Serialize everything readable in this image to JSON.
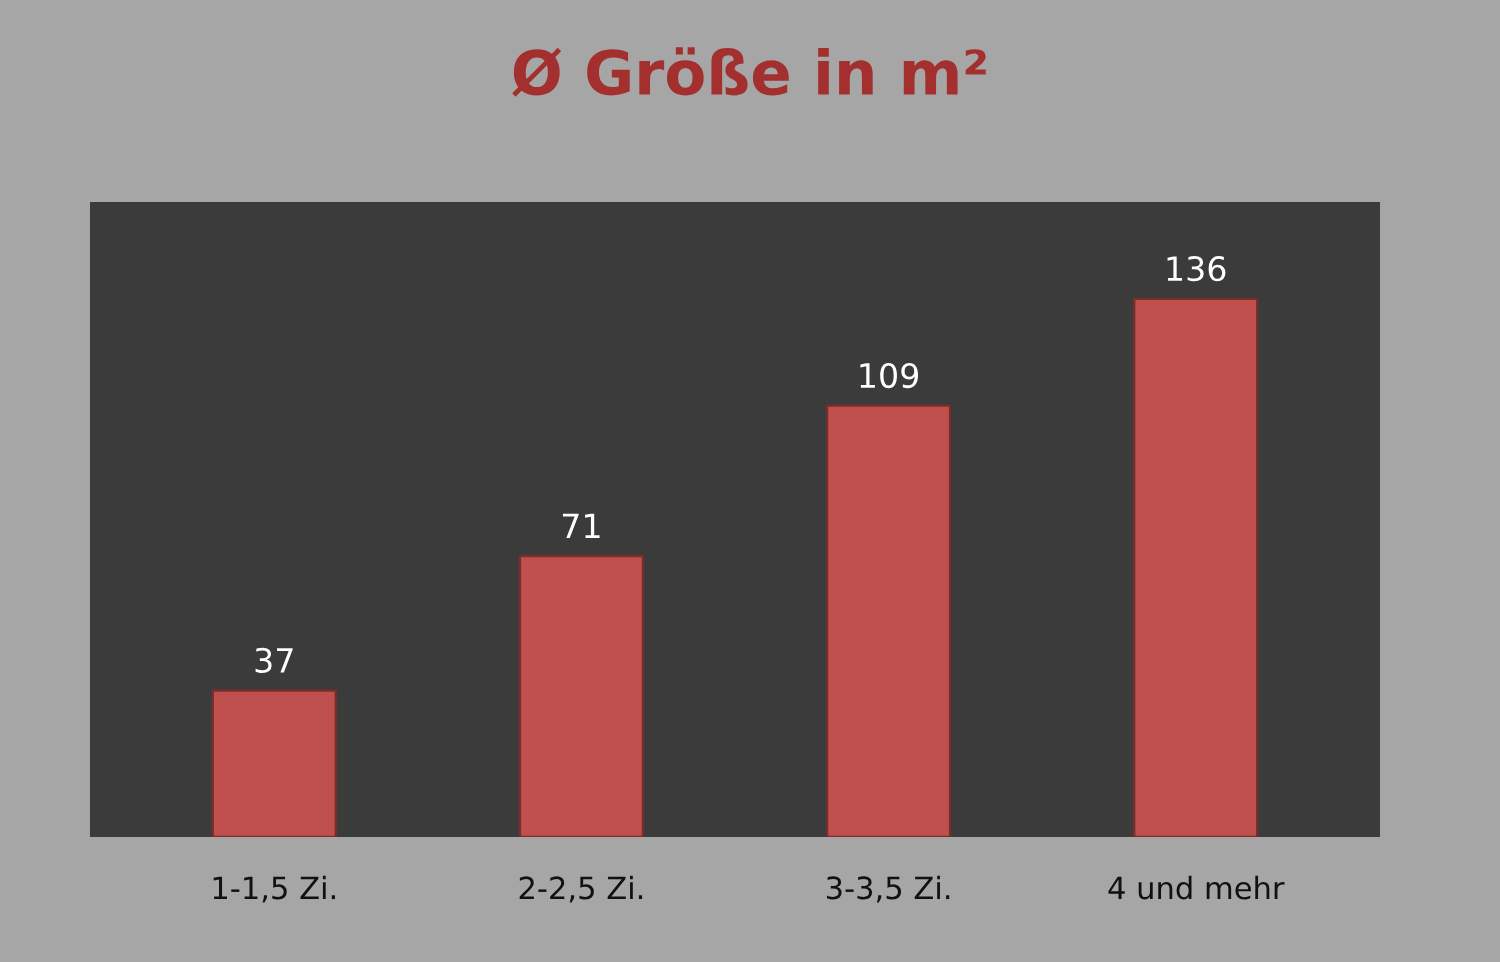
{
  "chart_data": {
    "type": "bar",
    "title": "Ø Größe in m²",
    "categories": [
      "1-1,5 Zi.",
      "2-2,5 Zi.",
      "3-3,5 Zi.",
      "4 und mehr"
    ],
    "values": [
      37,
      71,
      109,
      136
    ],
    "color": "#c0504d",
    "data_labels": true,
    "grid": false,
    "legend": false
  }
}
